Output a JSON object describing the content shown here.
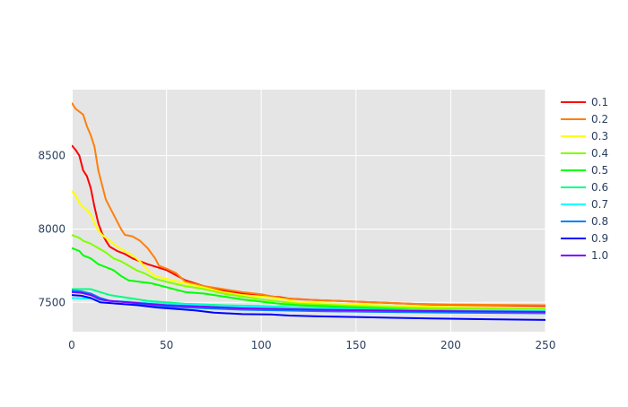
{
  "chart_data": {
    "type": "line",
    "title": "",
    "xlabel": "",
    "ylabel": "",
    "xlim": [
      0,
      250
    ],
    "ylim": [
      7300,
      8950
    ],
    "xticks": [
      0,
      50,
      100,
      150,
      200,
      250
    ],
    "yticks": [
      7500,
      8000,
      8500
    ],
    "grid": true,
    "background": "#e5e5e5",
    "legend_position": "right",
    "series": [
      {
        "name": "0.1",
        "color": "#ff0000",
        "points": [
          [
            0,
            8570
          ],
          [
            2,
            8540
          ],
          [
            4,
            8500
          ],
          [
            6,
            8400
          ],
          [
            8,
            8360
          ],
          [
            10,
            8280
          ],
          [
            12,
            8150
          ],
          [
            14,
            8040
          ],
          [
            16,
            7970
          ],
          [
            18,
            7920
          ],
          [
            20,
            7880
          ],
          [
            24,
            7850
          ],
          [
            28,
            7830
          ],
          [
            32,
            7800
          ],
          [
            40,
            7760
          ],
          [
            50,
            7720
          ],
          [
            60,
            7650
          ],
          [
            70,
            7610
          ],
          [
            80,
            7580
          ],
          [
            90,
            7560
          ],
          [
            100,
            7545
          ],
          [
            110,
            7535
          ],
          [
            115,
            7525
          ],
          [
            130,
            7515
          ],
          [
            150,
            7505
          ],
          [
            170,
            7495
          ],
          [
            190,
            7485
          ],
          [
            220,
            7480
          ],
          [
            250,
            7475
          ]
        ]
      },
      {
        "name": "0.2",
        "color": "#ff7f0e",
        "points": [
          [
            0,
            8860
          ],
          [
            2,
            8820
          ],
          [
            4,
            8800
          ],
          [
            6,
            8780
          ],
          [
            8,
            8700
          ],
          [
            10,
            8640
          ],
          [
            12,
            8560
          ],
          [
            14,
            8400
          ],
          [
            16,
            8300
          ],
          [
            18,
            8200
          ],
          [
            20,
            8150
          ],
          [
            22,
            8100
          ],
          [
            24,
            8050
          ],
          [
            26,
            8000
          ],
          [
            28,
            7960
          ],
          [
            32,
            7950
          ],
          [
            36,
            7920
          ],
          [
            40,
            7870
          ],
          [
            44,
            7800
          ],
          [
            46,
            7750
          ],
          [
            50,
            7730
          ],
          [
            55,
            7700
          ],
          [
            60,
            7640
          ],
          [
            70,
            7610
          ],
          [
            80,
            7590
          ],
          [
            90,
            7570
          ],
          [
            100,
            7555
          ],
          [
            110,
            7530
          ],
          [
            120,
            7520
          ],
          [
            140,
            7510
          ],
          [
            160,
            7500
          ],
          [
            180,
            7490
          ],
          [
            200,
            7485
          ],
          [
            250,
            7480
          ]
        ]
      },
      {
        "name": "0.3",
        "color": "#ffff00",
        "points": [
          [
            0,
            8260
          ],
          [
            2,
            8230
          ],
          [
            4,
            8180
          ],
          [
            6,
            8150
          ],
          [
            8,
            8130
          ],
          [
            10,
            8100
          ],
          [
            12,
            8040
          ],
          [
            14,
            7990
          ],
          [
            16,
            7960
          ],
          [
            18,
            7940
          ],
          [
            20,
            7920
          ],
          [
            24,
            7880
          ],
          [
            28,
            7850
          ],
          [
            32,
            7820
          ],
          [
            36,
            7780
          ],
          [
            40,
            7720
          ],
          [
            44,
            7680
          ],
          [
            50,
            7660
          ],
          [
            60,
            7630
          ],
          [
            70,
            7600
          ],
          [
            80,
            7570
          ],
          [
            90,
            7550
          ],
          [
            100,
            7540
          ],
          [
            110,
            7525
          ],
          [
            120,
            7500
          ],
          [
            140,
            7490
          ],
          [
            160,
            7480
          ],
          [
            190,
            7470
          ],
          [
            220,
            7465
          ],
          [
            250,
            7460
          ]
        ]
      },
      {
        "name": "0.4",
        "color": "#80ff00",
        "points": [
          [
            0,
            7960
          ],
          [
            4,
            7940
          ],
          [
            6,
            7920
          ],
          [
            10,
            7900
          ],
          [
            14,
            7870
          ],
          [
            18,
            7840
          ],
          [
            22,
            7800
          ],
          [
            26,
            7780
          ],
          [
            30,
            7750
          ],
          [
            34,
            7720
          ],
          [
            38,
            7700
          ],
          [
            44,
            7660
          ],
          [
            50,
            7640
          ],
          [
            60,
            7610
          ],
          [
            70,
            7590
          ],
          [
            80,
            7560
          ],
          [
            90,
            7540
          ],
          [
            100,
            7520
          ],
          [
            110,
            7505
          ],
          [
            120,
            7490
          ],
          [
            140,
            7480
          ],
          [
            160,
            7470
          ],
          [
            190,
            7460
          ],
          [
            250,
            7455
          ]
        ]
      },
      {
        "name": "0.5",
        "color": "#00ff00",
        "points": [
          [
            0,
            7870
          ],
          [
            4,
            7850
          ],
          [
            6,
            7820
          ],
          [
            10,
            7800
          ],
          [
            14,
            7760
          ],
          [
            18,
            7740
          ],
          [
            22,
            7720
          ],
          [
            26,
            7680
          ],
          [
            30,
            7650
          ],
          [
            36,
            7640
          ],
          [
            42,
            7630
          ],
          [
            48,
            7610
          ],
          [
            54,
            7590
          ],
          [
            60,
            7570
          ],
          [
            70,
            7560
          ],
          [
            80,
            7540
          ],
          [
            90,
            7520
          ],
          [
            100,
            7505
          ],
          [
            110,
            7490
          ],
          [
            120,
            7480
          ],
          [
            140,
            7470
          ],
          [
            160,
            7460
          ],
          [
            180,
            7450
          ],
          [
            200,
            7445
          ],
          [
            250,
            7440
          ]
        ]
      },
      {
        "name": "0.6",
        "color": "#00ff80",
        "points": [
          [
            0,
            7590
          ],
          [
            10,
            7590
          ],
          [
            15,
            7570
          ],
          [
            20,
            7550
          ],
          [
            30,
            7530
          ],
          [
            40,
            7510
          ],
          [
            50,
            7500
          ],
          [
            60,
            7490
          ],
          [
            80,
            7480
          ],
          [
            100,
            7475
          ],
          [
            120,
            7465
          ],
          [
            150,
            7455
          ],
          [
            180,
            7445
          ],
          [
            210,
            7440
          ],
          [
            250,
            7435
          ]
        ]
      },
      {
        "name": "0.7",
        "color": "#00ffff",
        "points": [
          [
            0,
            7530
          ],
          [
            10,
            7525
          ],
          [
            20,
            7510
          ],
          [
            30,
            7505
          ],
          [
            40,
            7495
          ],
          [
            60,
            7485
          ],
          [
            80,
            7475
          ],
          [
            100,
            7470
          ],
          [
            130,
            7460
          ],
          [
            160,
            7450
          ],
          [
            200,
            7445
          ],
          [
            250,
            7440
          ]
        ]
      },
      {
        "name": "0.8",
        "color": "#0080ff",
        "points": [
          [
            0,
            7580
          ],
          [
            5,
            7575
          ],
          [
            10,
            7560
          ],
          [
            15,
            7530
          ],
          [
            20,
            7510
          ],
          [
            30,
            7500
          ],
          [
            40,
            7480
          ],
          [
            50,
            7470
          ],
          [
            70,
            7460
          ],
          [
            90,
            7450
          ],
          [
            110,
            7445
          ],
          [
            130,
            7440
          ],
          [
            160,
            7435
          ],
          [
            200,
            7430
          ],
          [
            250,
            7425
          ]
        ]
      },
      {
        "name": "0.9",
        "color": "#0000ff",
        "points": [
          [
            0,
            7550
          ],
          [
            5,
            7545
          ],
          [
            10,
            7530
          ],
          [
            15,
            7500
          ],
          [
            25,
            7490
          ],
          [
            35,
            7480
          ],
          [
            45,
            7465
          ],
          [
            55,
            7455
          ],
          [
            65,
            7445
          ],
          [
            75,
            7430
          ],
          [
            90,
            7420
          ],
          [
            105,
            7418
          ],
          [
            115,
            7410
          ],
          [
            130,
            7405
          ],
          [
            150,
            7400
          ],
          [
            170,
            7395
          ],
          [
            190,
            7390
          ],
          [
            220,
            7385
          ],
          [
            250,
            7380
          ]
        ]
      },
      {
        "name": "1.0",
        "color": "#8000ff",
        "points": [
          [
            0,
            7570
          ],
          [
            5,
            7565
          ],
          [
            10,
            7550
          ],
          [
            15,
            7520
          ],
          [
            20,
            7510
          ],
          [
            30,
            7500
          ],
          [
            40,
            7490
          ],
          [
            50,
            7480
          ],
          [
            70,
            7470
          ],
          [
            90,
            7460
          ],
          [
            110,
            7455
          ],
          [
            130,
            7450
          ],
          [
            160,
            7445
          ],
          [
            200,
            7440
          ],
          [
            250,
            7435
          ]
        ]
      }
    ]
  }
}
